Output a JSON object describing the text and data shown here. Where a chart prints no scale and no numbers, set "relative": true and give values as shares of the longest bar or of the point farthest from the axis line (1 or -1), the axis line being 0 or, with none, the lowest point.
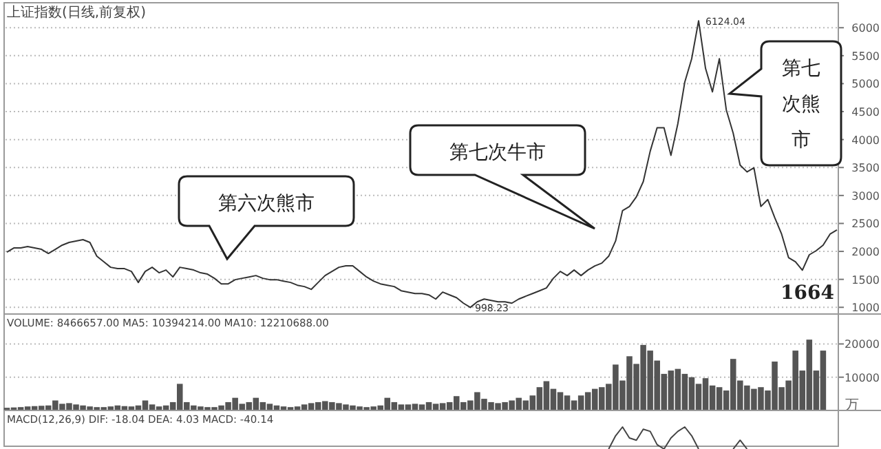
{
  "chart_data": [
    {
      "type": "line",
      "title": "上证指数(日线,前复权)",
      "color": "#333333",
      "categories": [
        null,
        null,
        null,
        null,
        null,
        null,
        null,
        null,
        null,
        null,
        null,
        null,
        null,
        null,
        null,
        null,
        null,
        null,
        null,
        null,
        null,
        null,
        null,
        null,
        null,
        null,
        null,
        null,
        null,
        null,
        null,
        null,
        null,
        null,
        null,
        null,
        null,
        null,
        null,
        null,
        null,
        null,
        null,
        null,
        null,
        null,
        null,
        null,
        null,
        null,
        null,
        null,
        null,
        null,
        null,
        null,
        null,
        null,
        null,
        null,
        null,
        null,
        null,
        null,
        null,
        null,
        null,
        null,
        null,
        null,
        null,
        null,
        null,
        null,
        null,
        null,
        null,
        null,
        null,
        null,
        null,
        null,
        null,
        null,
        null,
        null,
        null,
        null,
        null,
        null,
        null,
        null,
        null,
        null,
        null,
        null,
        null,
        null,
        null,
        null,
        null,
        null,
        null,
        null,
        null,
        null,
        null,
        null,
        null,
        null,
        null,
        null,
        null,
        null,
        null,
        null,
        null,
        null,
        null,
        null,
        null
      ],
      "values": [
        1988,
        2062,
        2062,
        2087,
        2062,
        2037,
        1963,
        2037,
        2112,
        2161,
        2186,
        2210,
        2161,
        1914,
        1815,
        1716,
        1692,
        1692,
        1642,
        1445,
        1642,
        1716,
        1618,
        1667,
        1543,
        1716,
        1692,
        1667,
        1618,
        1593,
        1519,
        1420,
        1420,
        1494,
        1519,
        1543,
        1568,
        1519,
        1494,
        1494,
        1469,
        1445,
        1395,
        1371,
        1321,
        1445,
        1568,
        1642,
        1716,
        1741,
        1741,
        1642,
        1543,
        1469,
        1420,
        1395,
        1371,
        1296,
        1272,
        1247,
        1247,
        1222,
        1148,
        1272,
        1222,
        1173,
        1074,
        998.23,
        1099,
        1148,
        1124,
        1099,
        1099,
        1074,
        1148,
        1198,
        1247,
        1296,
        1346,
        1519,
        1642,
        1568,
        1667,
        1568,
        1667,
        1741,
        1790,
        1914,
        2186,
        2729,
        2803,
        2976,
        3248,
        3791,
        4211,
        4211,
        3717,
        4285,
        5026,
        5446,
        6124.04,
        5273,
        4853,
        5446,
        4532,
        4112,
        3544,
        3421,
        3495,
        2803,
        2927,
        2606,
        2309,
        1889,
        1815,
        1664,
        1939,
        2013,
        2112,
        2309,
        2383
      ],
      "ylim": [
        880,
        6200
      ],
      "yticks": [
        1000,
        1500,
        2000,
        2500,
        3000,
        3500,
        4000,
        4500,
        5000,
        5500,
        6000
      ],
      "grid": "y",
      "tick_labels": "y",
      "annotations": [
        "第六次熊市",
        "第七次牛市",
        "第七次熊市",
        "6124.04",
        "998.23",
        "1664"
      ]
    },
    {
      "type": "bar",
      "title": "VOLUME: 8466657.00  MA5: 10394214.00  MA10: 12210688.00",
      "color": "#555555",
      "ylabel": "万",
      "categories": [
        null,
        null,
        null,
        null,
        null,
        null,
        null,
        null,
        null,
        null,
        null,
        null,
        null,
        null,
        null,
        null,
        null,
        null,
        null,
        null,
        null,
        null,
        null,
        null,
        null,
        null,
        null,
        null,
        null,
        null,
        null,
        null,
        null,
        null,
        null,
        null,
        null,
        null,
        null,
        null,
        null,
        null,
        null,
        null,
        null,
        null,
        null,
        null,
        null,
        null,
        null,
        null,
        null,
        null,
        null,
        null,
        null,
        null,
        null,
        null,
        null,
        null,
        null,
        null,
        null,
        null,
        null,
        null,
        null,
        null,
        null,
        null,
        null,
        null,
        null,
        null,
        null,
        null,
        null,
        null,
        null,
        null,
        null,
        null,
        null,
        null,
        null,
        null,
        null,
        null,
        null,
        null,
        null,
        null,
        null,
        null,
        null,
        null,
        null,
        null,
        null,
        null,
        null,
        null,
        null,
        null,
        null,
        null,
        null,
        null,
        null,
        null,
        null,
        null,
        null,
        null,
        null,
        null,
        null,
        null,
        null
      ],
      "values": [
        800,
        900,
        1000,
        1200,
        1300,
        1400,
        1500,
        3000,
        2000,
        2200,
        1800,
        1500,
        1200,
        1000,
        1000,
        1200,
        1500,
        1300,
        1200,
        1500,
        3000,
        1800,
        1200,
        1500,
        2500,
        8000,
        2500,
        1500,
        1200,
        1000,
        1000,
        1500,
        2500,
        3800,
        2000,
        2500,
        3800,
        2500,
        2000,
        1500,
        1200,
        1000,
        1200,
        1800,
        2200,
        2500,
        2800,
        2500,
        2200,
        1800,
        1500,
        1200,
        1000,
        1200,
        1500,
        3800,
        2500,
        1800,
        1800,
        2000,
        1800,
        2500,
        2000,
        2200,
        2500,
        4300,
        2500,
        3000,
        5500,
        3500,
        2500,
        2200,
        2500,
        3000,
        3800,
        3000,
        4500,
        7000,
        8800,
        6500,
        5500,
        4500,
        3000,
        4500,
        5500,
        6500,
        7000,
        8000,
        13800,
        9000,
        16300,
        14000,
        19700,
        18000,
        15000,
        11000,
        12000,
        12500,
        11000,
        10000,
        8000,
        9700,
        7500,
        7000,
        6000,
        15500,
        9000,
        7500,
        6500,
        7000,
        6000,
        14700,
        7000,
        9000,
        18000,
        12000,
        21300,
        12000,
        18000,
        null,
        null
      ],
      "ylim": [
        0,
        29000
      ],
      "yticks": [
        10000,
        20000
      ],
      "grid": "y",
      "tick_labels": "y"
    },
    {
      "type": "line",
      "title": "MACD(12,26,9)  DIF: -18.04  DEA: 4.03  MACD: -40.14",
      "color": "#444444",
      "relative": true,
      "categories": [
        null,
        null,
        null,
        null,
        null,
        null,
        null,
        null,
        null,
        null,
        null,
        null,
        null,
        null,
        null,
        null,
        null,
        null,
        null,
        null,
        null,
        null,
        null,
        null,
        null,
        null,
        null,
        null,
        null,
        null,
        null,
        null,
        null,
        null,
        null,
        null,
        null,
        null,
        null,
        null,
        null,
        null,
        null,
        null,
        null,
        null,
        null,
        null,
        null,
        null,
        null,
        null,
        null,
        null,
        null,
        null,
        null,
        null,
        null,
        null,
        null,
        null,
        null,
        null,
        null,
        null,
        null,
        null,
        null,
        null,
        null,
        null,
        null,
        null,
        null,
        null,
        null,
        null,
        null,
        null,
        null,
        null,
        null,
        null,
        null,
        null,
        null,
        null,
        null,
        null,
        null,
        null,
        null,
        null,
        null,
        null,
        null,
        null,
        null,
        null,
        null,
        null,
        null,
        null,
        null,
        null,
        null,
        null,
        null,
        null,
        null,
        null,
        null,
        null,
        null,
        null,
        null,
        null,
        null,
        null,
        null
      ],
      "values": [
        null,
        null,
        null,
        null,
        null,
        null,
        null,
        null,
        null,
        null,
        null,
        null,
        null,
        null,
        null,
        null,
        null,
        null,
        null,
        null,
        null,
        null,
        null,
        null,
        null,
        null,
        null,
        null,
        null,
        null,
        null,
        null,
        null,
        null,
        null,
        null,
        null,
        null,
        null,
        null,
        null,
        null,
        null,
        null,
        null,
        null,
        null,
        null,
        null,
        null,
        null,
        null,
        null,
        null,
        null,
        null,
        null,
        null,
        null,
        null,
        null,
        null,
        null,
        null,
        null,
        null,
        null,
        null,
        null,
        null,
        null,
        null,
        null,
        null,
        null,
        null,
        null,
        null,
        null,
        null,
        null,
        null,
        null,
        null,
        null,
        null,
        null,
        0,
        0.6,
        1,
        0.5,
        0.4,
        0.9,
        0.8,
        0.2,
        0,
        0.5,
        0.8,
        1,
        0.6,
        0,
        null,
        null,
        null,
        null,
        0,
        0.4,
        0,
        null,
        null,
        null,
        null,
        null,
        null,
        null,
        null,
        null,
        null,
        null,
        null,
        null
      ]
    }
  ]
}
